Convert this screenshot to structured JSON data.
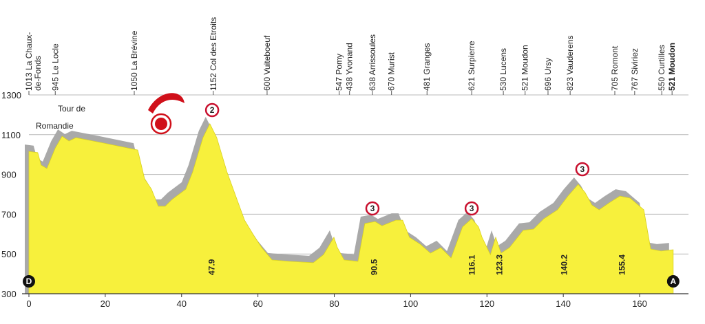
{
  "chart_data": {
    "type": "area",
    "color": "#f7f03c",
    "shadow_color": "#a9a9a9",
    "grid": true,
    "xlim": [
      0,
      172
    ],
    "ylim": [
      300,
      1300
    ],
    "xticks": [
      0,
      20,
      40,
      60,
      80,
      100,
      120,
      140,
      160
    ],
    "yticks": [
      300,
      500,
      700,
      900,
      1100,
      1300
    ],
    "x": [
      0,
      2.3,
      3.2,
      4.7,
      6.9,
      8.7,
      10.5,
      12.3,
      19.5,
      28.5,
      30.3,
      32.1,
      33.9,
      35.7,
      37.5,
      41.1,
      42.9,
      45.6,
      47.4,
      49.2,
      51.9,
      56.5,
      59.2,
      61,
      63.7,
      68.2,
      74.5,
      77.2,
      79.9,
      80.8,
      82.6,
      86.2,
      88,
      90.7,
      92.5,
      96.1,
      97.9,
      99.7,
      102.5,
      105.2,
      107.9,
      110.6,
      113.6,
      116,
      117.8,
      118.7,
      120.9,
      122.3,
      123.7,
      125.9,
      129.5,
      132.2,
      134.9,
      138.5,
      141.2,
      143.9,
      145.7,
      147.5,
      149.4,
      152,
      154.8,
      157.5,
      161.1,
      162.9,
      165.6,
      168.8
    ],
    "values": [
      1016,
      1010,
      947,
      930,
      1033,
      1092,
      1068,
      1085,
      1058,
      1023,
      878,
      826,
      740,
      740,
      774,
      826,
      912,
      1085,
      1155,
      1085,
      912,
      670,
      584,
      532,
      470,
      463,
      456,
      497,
      584,
      532,
      470,
      463,
      653,
      663,
      642,
      670,
      670,
      584,
      549,
      504,
      532,
      480,
      636,
      677,
      636,
      584,
      497,
      584,
      504,
      532,
      619,
      625,
      677,
      722,
      791,
      850,
      809,
      746,
      722,
      757,
      791,
      781,
      722,
      525,
      515,
      521
    ],
    "logo": [
      "Tour de",
      "Romandie"
    ],
    "places": [
      {
        "km": 0,
        "lines": [
          "1013 La Chaux-",
          "de-Fonds"
        ]
      },
      {
        "km": 6.9,
        "lines": [
          "945 Le Locle"
        ]
      },
      {
        "km": 27.6,
        "lines": [
          "1050 La Brévine"
        ]
      },
      {
        "km": 48.3,
        "lines": [
          "1152 Col des Etroits"
        ]
      },
      {
        "km": 62.4,
        "lines": [
          "600 Vuiteboeuf"
        ]
      },
      {
        "km": 81.3,
        "lines": [
          "547 Pomy"
        ]
      },
      {
        "km": 84,
        "lines": [
          "438 Yvonand"
        ]
      },
      {
        "km": 90,
        "lines": [
          "638 Arrissoules"
        ]
      },
      {
        "km": 95,
        "lines": [
          "670 Murist"
        ]
      },
      {
        "km": 104.3,
        "lines": [
          "481 Granges"
        ]
      },
      {
        "km": 116,
        "lines": [
          "621 Surpierre"
        ]
      },
      {
        "km": 124.3,
        "lines": [
          "530 Lucens"
        ]
      },
      {
        "km": 130,
        "lines": [
          "521 Moudon"
        ]
      },
      {
        "km": 136,
        "lines": [
          "696 Ursy"
        ]
      },
      {
        "km": 141.8,
        "lines": [
          "823 Vauderens"
        ]
      },
      {
        "km": 153.5,
        "lines": [
          "705 Romont"
        ]
      },
      {
        "km": 158.7,
        "lines": [
          "767 Siviriez"
        ]
      },
      {
        "km": 165.8,
        "lines": [
          "550 Curtilles"
        ]
      },
      {
        "km": 168.5,
        "lines": [
          "521 Moudon"
        ],
        "bold": true
      }
    ],
    "km_marks": [
      47.9,
      90.5,
      116.1,
      123.3,
      140.2,
      155.4
    ],
    "climbs": [
      {
        "km": 48,
        "cat": 2
      },
      {
        "km": 90,
        "cat": 3
      },
      {
        "km": 116,
        "cat": 3
      },
      {
        "km": 145,
        "cat": 3
      }
    ],
    "start": "D",
    "finish": "A"
  }
}
